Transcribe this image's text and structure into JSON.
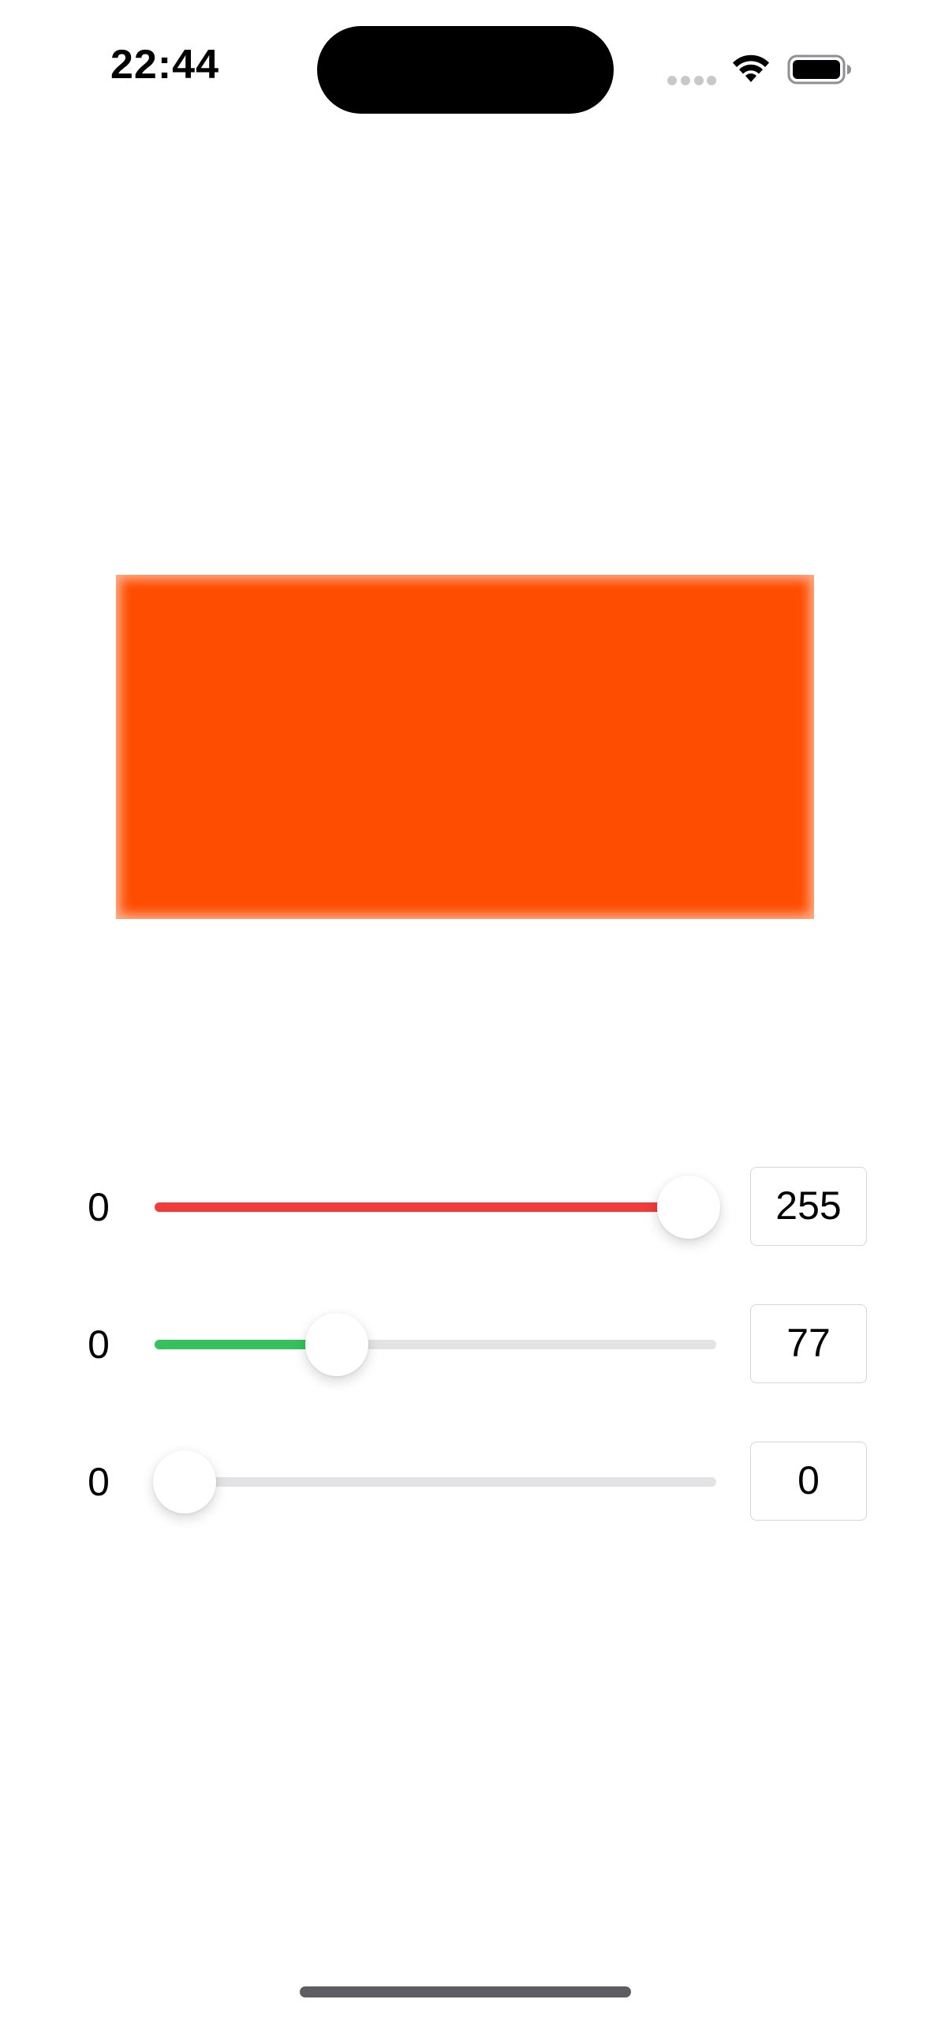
{
  "status_bar": {
    "time": "22:44",
    "icons": [
      "signal-dots-icon",
      "wifi-icon",
      "battery-icon"
    ]
  },
  "preview": {
    "color": "#ff4d00"
  },
  "sliders": [
    {
      "channel": "red",
      "min_label": "0",
      "value": 255,
      "max": 255,
      "value_text": "255",
      "fill_color": "#f23b3b"
    },
    {
      "channel": "green",
      "min_label": "0",
      "value": 77,
      "max": 255,
      "value_text": "77",
      "fill_color": "#33c25c"
    },
    {
      "channel": "blue",
      "min_label": "0",
      "value": 0,
      "max": 255,
      "value_text": "0",
      "fill_color": "#2f7bf5"
    }
  ]
}
